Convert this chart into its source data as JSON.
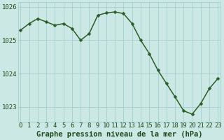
{
  "x": [
    0,
    1,
    2,
    3,
    4,
    5,
    6,
    7,
    8,
    9,
    10,
    11,
    12,
    13,
    14,
    15,
    16,
    17,
    18,
    19,
    20,
    21,
    22,
    23
  ],
  "y": [
    1025.3,
    1025.5,
    1025.65,
    1025.55,
    1025.45,
    1025.5,
    1025.35,
    1025.0,
    1025.2,
    1025.75,
    1025.82,
    1025.85,
    1025.8,
    1025.5,
    1025.0,
    1024.6,
    1024.1,
    1023.7,
    1023.3,
    1022.88,
    1022.78,
    1023.1,
    1023.55,
    1023.85
  ],
  "line_color": "#2a5e2a",
  "marker_color": "#2a5e2a",
  "bg_color": "#cce8e4",
  "grid_color": "#99cccc",
  "axis_label_color": "#1a4a1a",
  "tick_label_color": "#1a4a1a",
  "xlabel": "Graphe pression niveau de la mer (hPa)",
  "ylim": [
    1022.55,
    1026.15
  ],
  "yticks": [
    1023,
    1024,
    1025,
    1026
  ],
  "xticks": [
    0,
    1,
    2,
    3,
    4,
    5,
    6,
    7,
    8,
    9,
    10,
    11,
    12,
    13,
    14,
    15,
    16,
    17,
    18,
    19,
    20,
    21,
    22,
    23
  ],
  "tick_fontsize": 6.5,
  "xlabel_fontsize": 7.5,
  "marker_size": 2.5,
  "line_width": 1.1
}
